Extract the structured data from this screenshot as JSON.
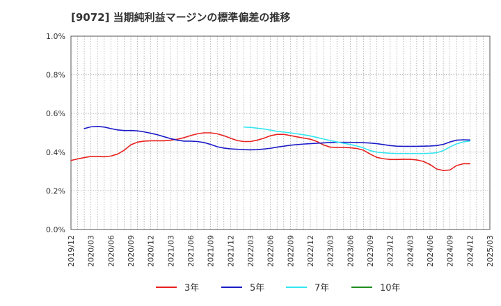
{
  "chart_data": {
    "type": "line",
    "title": "[9072]  当期純利益マージンの標準偏差の推移",
    "xlabel": "",
    "ylabel": "",
    "ylim": [
      0,
      0.01
    ],
    "y_ticks": [
      0,
      0.002,
      0.004,
      0.006,
      0.008,
      0.01
    ],
    "y_tick_labels": [
      "0.0%",
      "0.2%",
      "0.4%",
      "0.6%",
      "0.8%",
      "1.0%"
    ],
    "x_ticks": [
      "2019/12",
      "2020/03",
      "2020/06",
      "2020/09",
      "2020/12",
      "2021/03",
      "2021/06",
      "2021/09",
      "2021/12",
      "2022/03",
      "2022/06",
      "2022/09",
      "2022/12",
      "2023/03",
      "2023/06",
      "2023/09",
      "2023/12",
      "2024/03",
      "2024/06",
      "2024/09",
      "2024/12",
      "2025/03"
    ],
    "grid": true,
    "legend_position": "bottom",
    "series": [
      {
        "name": "3年",
        "color": "#e8201e",
        "x": [
          "2019/12",
          "2020/01",
          "2020/02",
          "2020/03",
          "2020/04",
          "2020/05",
          "2020/06",
          "2020/07",
          "2020/08",
          "2020/09",
          "2020/10",
          "2020/11",
          "2020/12",
          "2021/01",
          "2021/02",
          "2021/03",
          "2021/04",
          "2021/05",
          "2021/06",
          "2021/07",
          "2021/08",
          "2021/09",
          "2021/10",
          "2021/11",
          "2021/12",
          "2022/01",
          "2022/02",
          "2022/03",
          "2022/04",
          "2022/05",
          "2022/06",
          "2022/07",
          "2022/08",
          "2022/09",
          "2022/10",
          "2022/11",
          "2022/12",
          "2023/01",
          "2023/02",
          "2023/03",
          "2023/04",
          "2023/05",
          "2023/06",
          "2023/07",
          "2023/08",
          "2023/09",
          "2023/10",
          "2023/11",
          "2023/12",
          "2024/01",
          "2024/02",
          "2024/03",
          "2024/04",
          "2024/05",
          "2024/06",
          "2024/07",
          "2024/08",
          "2024/09",
          "2024/10",
          "2024/11",
          "2024/12"
        ],
        "values": [
          0.00357,
          0.00365,
          0.00372,
          0.00378,
          0.00378,
          0.00376,
          0.0038,
          0.0039,
          0.0041,
          0.00438,
          0.00452,
          0.00457,
          0.00459,
          0.00459,
          0.00459,
          0.00462,
          0.00467,
          0.00475,
          0.00486,
          0.00495,
          0.005,
          0.005,
          0.00495,
          0.00485,
          0.00472,
          0.0046,
          0.00455,
          0.00455,
          0.00462,
          0.00472,
          0.00485,
          0.00492,
          0.00492,
          0.00486,
          0.00479,
          0.00473,
          0.00467,
          0.00455,
          0.00437,
          0.00426,
          0.00424,
          0.00424,
          0.00423,
          0.00419,
          0.0041,
          0.0039,
          0.00373,
          0.00366,
          0.00362,
          0.00362,
          0.00363,
          0.00363,
          0.0036,
          0.00352,
          0.00336,
          0.00313,
          0.00305,
          0.00308,
          0.00331,
          0.0034,
          0.0034
        ]
      },
      {
        "name": "5年",
        "color": "#1a1ac8",
        "x": [
          "2020/02",
          "2020/03",
          "2020/04",
          "2020/05",
          "2020/06",
          "2020/07",
          "2020/08",
          "2020/09",
          "2020/10",
          "2020/11",
          "2020/12",
          "2021/01",
          "2021/02",
          "2021/03",
          "2021/04",
          "2021/05",
          "2021/06",
          "2021/07",
          "2021/08",
          "2021/09",
          "2021/10",
          "2021/11",
          "2021/12",
          "2022/01",
          "2022/02",
          "2022/03",
          "2022/04",
          "2022/05",
          "2022/06",
          "2022/07",
          "2022/08",
          "2022/09",
          "2022/10",
          "2022/11",
          "2022/12",
          "2023/01",
          "2023/02",
          "2023/03",
          "2023/04",
          "2023/05",
          "2023/06",
          "2023/07",
          "2023/08",
          "2023/09",
          "2023/10",
          "2023/11",
          "2023/12",
          "2024/01",
          "2024/02",
          "2024/03",
          "2024/04",
          "2024/05",
          "2024/06",
          "2024/07",
          "2024/08",
          "2024/09",
          "2024/10",
          "2024/11",
          "2024/12"
        ],
        "values": [
          0.00522,
          0.00531,
          0.00533,
          0.0053,
          0.00522,
          0.00515,
          0.00512,
          0.00512,
          0.0051,
          0.00505,
          0.00498,
          0.0049,
          0.0048,
          0.0047,
          0.00462,
          0.00457,
          0.00457,
          0.00455,
          0.0045,
          0.0044,
          0.00428,
          0.00421,
          0.00417,
          0.00415,
          0.00413,
          0.00412,
          0.00413,
          0.00416,
          0.0042,
          0.00426,
          0.00431,
          0.00436,
          0.00439,
          0.00442,
          0.00444,
          0.00446,
          0.00448,
          0.0045,
          0.00451,
          0.00451,
          0.00451,
          0.0045,
          0.00449,
          0.00447,
          0.00444,
          0.00439,
          0.00434,
          0.00431,
          0.0043,
          0.0043,
          0.0043,
          0.00431,
          0.00432,
          0.00434,
          0.0044,
          0.00453,
          0.00462,
          0.00464,
          0.00463
        ]
      },
      {
        "name": "7年",
        "color": "#33e6f0",
        "x": [
          "2022/02",
          "2022/03",
          "2022/04",
          "2022/05",
          "2022/06",
          "2022/07",
          "2022/08",
          "2022/09",
          "2022/10",
          "2022/11",
          "2022/12",
          "2023/01",
          "2023/02",
          "2023/03",
          "2023/04",
          "2023/05",
          "2023/06",
          "2023/07",
          "2023/08",
          "2023/09",
          "2023/10",
          "2023/11",
          "2023/12",
          "2024/01",
          "2024/02",
          "2024/03",
          "2024/04",
          "2024/05",
          "2024/06",
          "2024/07",
          "2024/08",
          "2024/09",
          "2024/10",
          "2024/11",
          "2024/12"
        ],
        "values": [
          0.0053,
          0.00528,
          0.00524,
          0.0052,
          0.00514,
          0.00508,
          0.00504,
          0.005,
          0.00495,
          0.0049,
          0.00484,
          0.00476,
          0.00468,
          0.0046,
          0.00453,
          0.00446,
          0.0044,
          0.00432,
          0.00422,
          0.00408,
          0.004,
          0.00397,
          0.00394,
          0.00393,
          0.00393,
          0.00393,
          0.00393,
          0.00393,
          0.00394,
          0.00397,
          0.00408,
          0.00427,
          0.00443,
          0.00453,
          0.00458
        ]
      },
      {
        "name": "10年",
        "color": "#1e8c1e",
        "x": [],
        "values": []
      }
    ]
  }
}
